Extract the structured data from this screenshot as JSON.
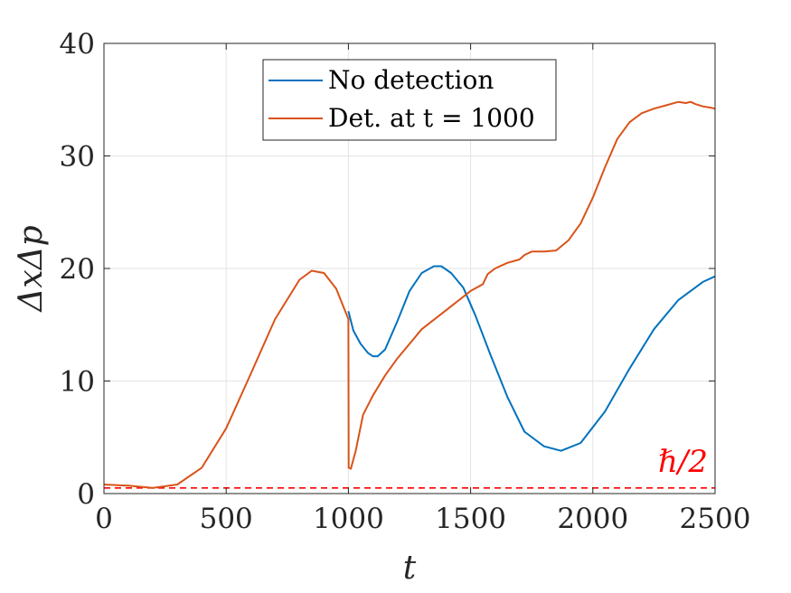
{
  "chart_data": {
    "type": "line",
    "title": "",
    "xlabel": "t",
    "ylabel": "ΔxΔp",
    "xlim": [
      0,
      2500
    ],
    "ylim": [
      0,
      40
    ],
    "xticks": [
      0,
      500,
      1000,
      1500,
      2000,
      2500
    ],
    "yticks": [
      0,
      10,
      20,
      30,
      40
    ],
    "xtick_labels": [
      "0",
      "500",
      "1000",
      "1500",
      "2000",
      "2500"
    ],
    "ytick_labels": [
      "0",
      "10",
      "20",
      "30",
      "40"
    ],
    "grid": true,
    "legend_position": "top-center",
    "series": [
      {
        "name": "No detection",
        "color": "#0072BD",
        "x": [
          1000,
          1020,
          1050,
          1080,
          1100,
          1120,
          1150,
          1200,
          1250,
          1300,
          1350,
          1380,
          1420,
          1470,
          1520,
          1580,
          1650,
          1720,
          1800,
          1870,
          1950,
          2050,
          2150,
          2250,
          2350,
          2450,
          2500
        ],
        "y": [
          16.2,
          14.5,
          13.3,
          12.5,
          12.2,
          12.2,
          12.8,
          15.3,
          18.0,
          19.6,
          20.2,
          20.2,
          19.6,
          18.3,
          15.8,
          12.4,
          8.6,
          5.5,
          4.2,
          3.8,
          4.5,
          7.3,
          11.1,
          14.6,
          17.2,
          18.8,
          19.3
        ]
      },
      {
        "name": "Det. at t = 1000",
        "color": "#D95319",
        "x": [
          0,
          100,
          200,
          300,
          400,
          500,
          600,
          700,
          800,
          850,
          900,
          950,
          1000,
          1001,
          1010,
          1030,
          1060,
          1100,
          1150,
          1200,
          1300,
          1400,
          1500,
          1550,
          1570,
          1600,
          1650,
          1700,
          1720,
          1750,
          1800,
          1850,
          1900,
          1950,
          2000,
          2050,
          2100,
          2150,
          2200,
          2250,
          2300,
          2350,
          2380,
          2400,
          2420,
          2450,
          2480,
          2500
        ],
        "y": [
          0.8,
          0.7,
          0.5,
          0.8,
          2.3,
          5.8,
          10.6,
          15.5,
          19.0,
          19.8,
          19.6,
          18.2,
          15.5,
          2.3,
          2.2,
          3.8,
          7.0,
          8.7,
          10.5,
          12.0,
          14.6,
          16.3,
          18.0,
          18.6,
          19.5,
          20.0,
          20.5,
          20.8,
          21.2,
          21.5,
          21.5,
          21.6,
          22.5,
          24.0,
          26.3,
          29.0,
          31.5,
          33.0,
          33.8,
          34.2,
          34.5,
          34.8,
          34.7,
          34.8,
          34.6,
          34.4,
          34.3,
          34.2
        ]
      }
    ],
    "reference_line": {
      "y": 0.5,
      "label": "ℏ/2",
      "color": "#FF0000",
      "style": "dashed"
    }
  },
  "legend": {
    "items": [
      {
        "label": "No detection",
        "color": "#0072BD"
      },
      {
        "label": "Det. at t = 1000",
        "color": "#D95319"
      }
    ]
  }
}
